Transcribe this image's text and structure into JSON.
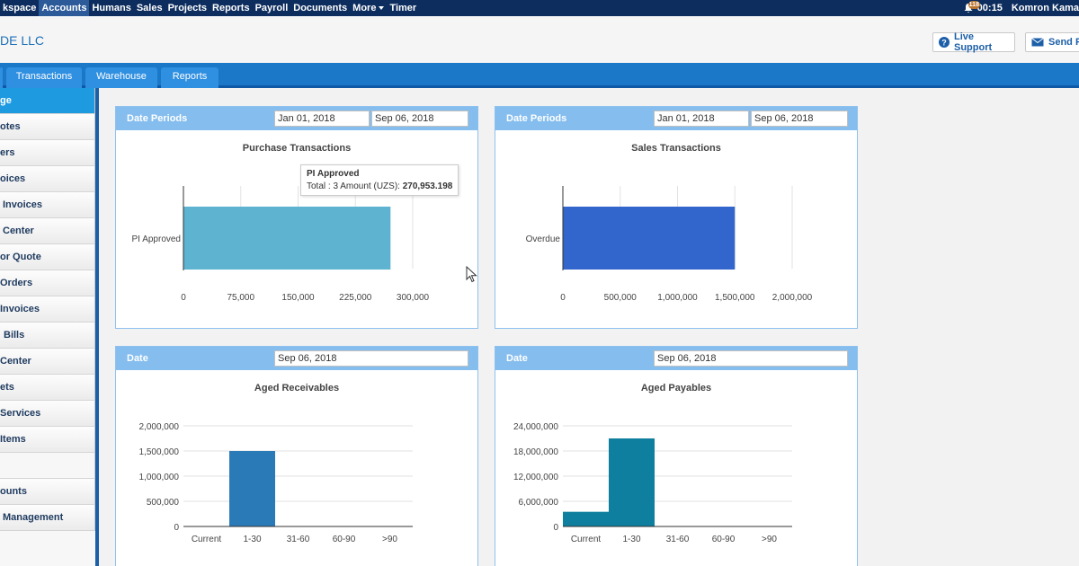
{
  "topnav": {
    "items": [
      {
        "label": "kspace",
        "active": false
      },
      {
        "label": "Accounts",
        "active": true
      },
      {
        "label": "Humans",
        "active": false
      },
      {
        "label": "Sales",
        "active": false
      },
      {
        "label": "Projects",
        "active": false
      },
      {
        "label": "Reports",
        "active": false
      },
      {
        "label": "Payroll",
        "active": false
      },
      {
        "label": "Documents",
        "active": false
      },
      {
        "label": "More",
        "active": false
      },
      {
        "label": "Timer",
        "active": false
      }
    ],
    "notification_count": "118",
    "time": "00:15",
    "user": "Komron Kama"
  },
  "header": {
    "company": "DE LLC",
    "live_support": "Live Support",
    "send_feedback": "Send F"
  },
  "tabs": [
    "Transactions",
    "Warehouse",
    "Reports"
  ],
  "sidebar": {
    "items": [
      "ge",
      "otes",
      "ers",
      "oices",
      "Invoices",
      "Center",
      "or Quote",
      "Orders",
      "Invoices",
      "Bills",
      "Center",
      "ets",
      "Services",
      "Items",
      "",
      "ounts",
      "Management"
    ]
  },
  "panels": {
    "purchase": {
      "header_label": "Date Periods",
      "date_from": "Jan 01, 2018",
      "date_to": "Sep 06, 2018",
      "title": "Purchase Transactions",
      "tooltip": {
        "title": "PI Approved",
        "line_prefix": "Total : 3 Amount (UZS): ",
        "amount": "270,953.198"
      }
    },
    "sales": {
      "header_label": "Date Periods",
      "date_from": "Jan 01, 2018",
      "date_to": "Sep 06, 2018",
      "title": "Sales Transactions"
    },
    "receivables": {
      "header_label": "Date",
      "date": "Sep 06, 2018",
      "title": "Aged Receivables"
    },
    "payables": {
      "header_label": "Date",
      "date": "Sep 06, 2018",
      "title": "Aged Payables"
    }
  },
  "chart_data": [
    {
      "id": "purchase",
      "type": "bar",
      "orientation": "horizontal",
      "categories": [
        "PI Approved"
      ],
      "values": [
        270953.198
      ],
      "xlim": [
        0,
        300000
      ],
      "ticks": [
        0,
        75000,
        150000,
        225000,
        300000
      ],
      "tick_labels": [
        "0",
        "75,000",
        "150,000",
        "225,000",
        "300,000"
      ],
      "color": "#5db3d0"
    },
    {
      "id": "sales",
      "type": "bar",
      "orientation": "horizontal",
      "categories": [
        "Overdue"
      ],
      "values": [
        1500000
      ],
      "xlim": [
        0,
        2000000
      ],
      "ticks": [
        0,
        500000,
        1000000,
        1500000,
        2000000
      ],
      "tick_labels": [
        "0",
        "500,000",
        "1,000,000",
        "1,500,000",
        "2,000,000"
      ],
      "color": "#3366cc"
    },
    {
      "id": "receivables",
      "type": "bar",
      "orientation": "vertical",
      "categories": [
        "Current",
        "1-30",
        "31-60",
        "60-90",
        ">90"
      ],
      "values": [
        0,
        1500000,
        0,
        0,
        0
      ],
      "ylim": [
        0,
        2000000
      ],
      "ticks": [
        0,
        500000,
        1000000,
        1500000,
        2000000
      ],
      "tick_labels": [
        "0",
        "500,000",
        "1,000,000",
        "1,500,000",
        "2,000,000"
      ],
      "color": "#2a7ab8"
    },
    {
      "id": "payables",
      "type": "bar",
      "orientation": "vertical",
      "categories": [
        "Current",
        "1-30",
        "31-60",
        "60-90",
        ">90"
      ],
      "values": [
        3500000,
        21000000,
        0,
        0,
        0
      ],
      "ylim": [
        0,
        24000000
      ],
      "ticks": [
        0,
        6000000,
        12000000,
        18000000,
        24000000
      ],
      "tick_labels": [
        "0",
        "6,000,000",
        "12,000,000",
        "18,000,000",
        "24,000,000"
      ],
      "color": "#0e7f9e"
    }
  ]
}
